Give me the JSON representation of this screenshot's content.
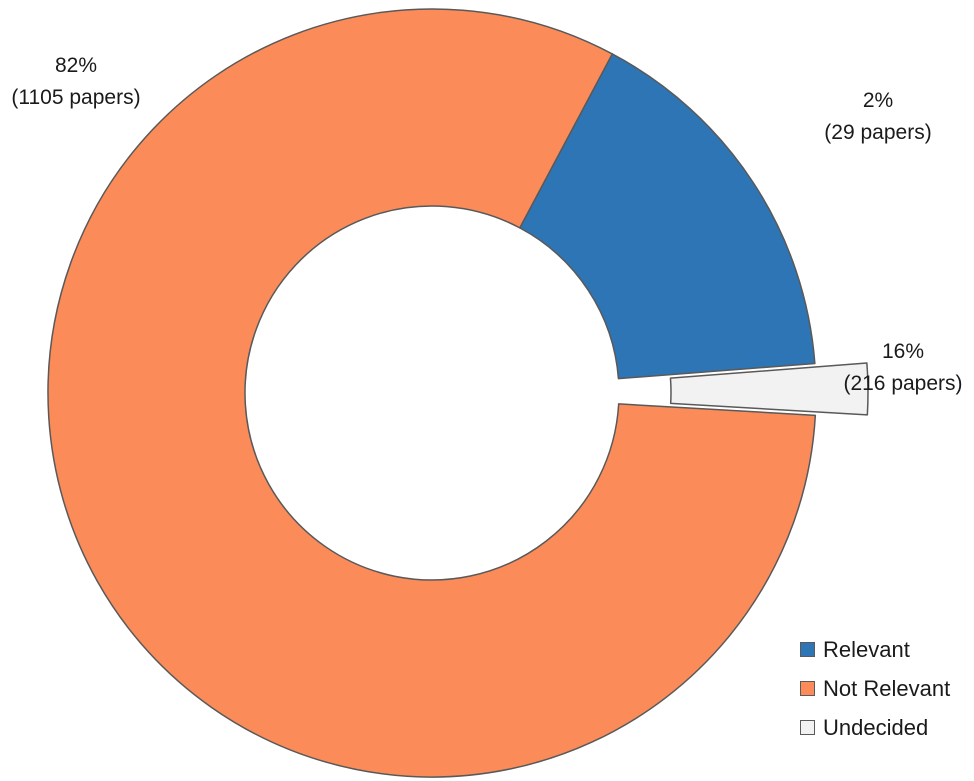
{
  "chart_data": {
    "type": "pie",
    "variant": "donut",
    "exploded_slices": [
      "Undecided"
    ],
    "slices": [
      {
        "name": "Relevant",
        "value": 216,
        "percent_label": "16%",
        "count_label": "(216 papers)",
        "color": "#2e75b6"
      },
      {
        "name": "Undecided",
        "value": 29,
        "percent_label": "2%",
        "count_label": "(29 papers)",
        "color": "#f2f2f2"
      },
      {
        "name": "Not Relevant",
        "value": 1105,
        "percent_label": "82%",
        "count_label": "(1105 papers)",
        "color": "#fb8c5a"
      }
    ],
    "legend": {
      "placement": "bottom-right",
      "items": [
        {
          "label": "Relevant",
          "color": "#2e75b6"
        },
        {
          "label": "Not Relevant",
          "color": "#fb8c5a"
        },
        {
          "label": "Undecided",
          "color": "#f2f2f2"
        }
      ]
    },
    "outline_color": "#595959"
  }
}
